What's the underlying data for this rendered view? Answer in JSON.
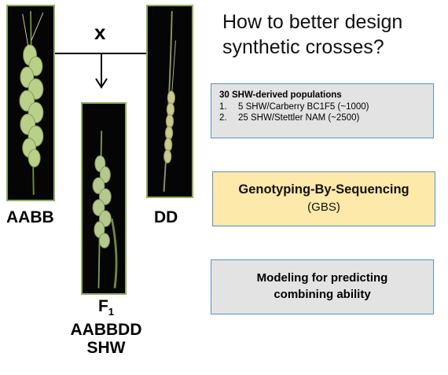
{
  "title": "How to better design synthetic crosses?",
  "cross_symbol": "x",
  "parents": {
    "left_label": "AABB",
    "right_label": "DD"
  },
  "f1": {
    "label_main": "F",
    "label_sub": "1",
    "genome": "AABBDD",
    "name": "SHW"
  },
  "populations": {
    "heading": "30 SHW-derived populations",
    "items": [
      {
        "num": "1.",
        "text": "5 SHW/Carberry BC1F5 (~1000)"
      },
      {
        "num": "2.",
        "text": "25 SHW/Stettler NAM (~2500)"
      }
    ]
  },
  "gbs": {
    "title": "Genotyping-By-Sequencing",
    "subtitle": "(GBS)"
  },
  "modeling": {
    "line1": "Modeling for predicting",
    "line2": "combining ability"
  },
  "colors": {
    "photo_border": "#8fae5a",
    "box_border": "#5b8fc9",
    "grey_fill": "#e3e3e3",
    "gbs_fill": "#fde9a9"
  }
}
